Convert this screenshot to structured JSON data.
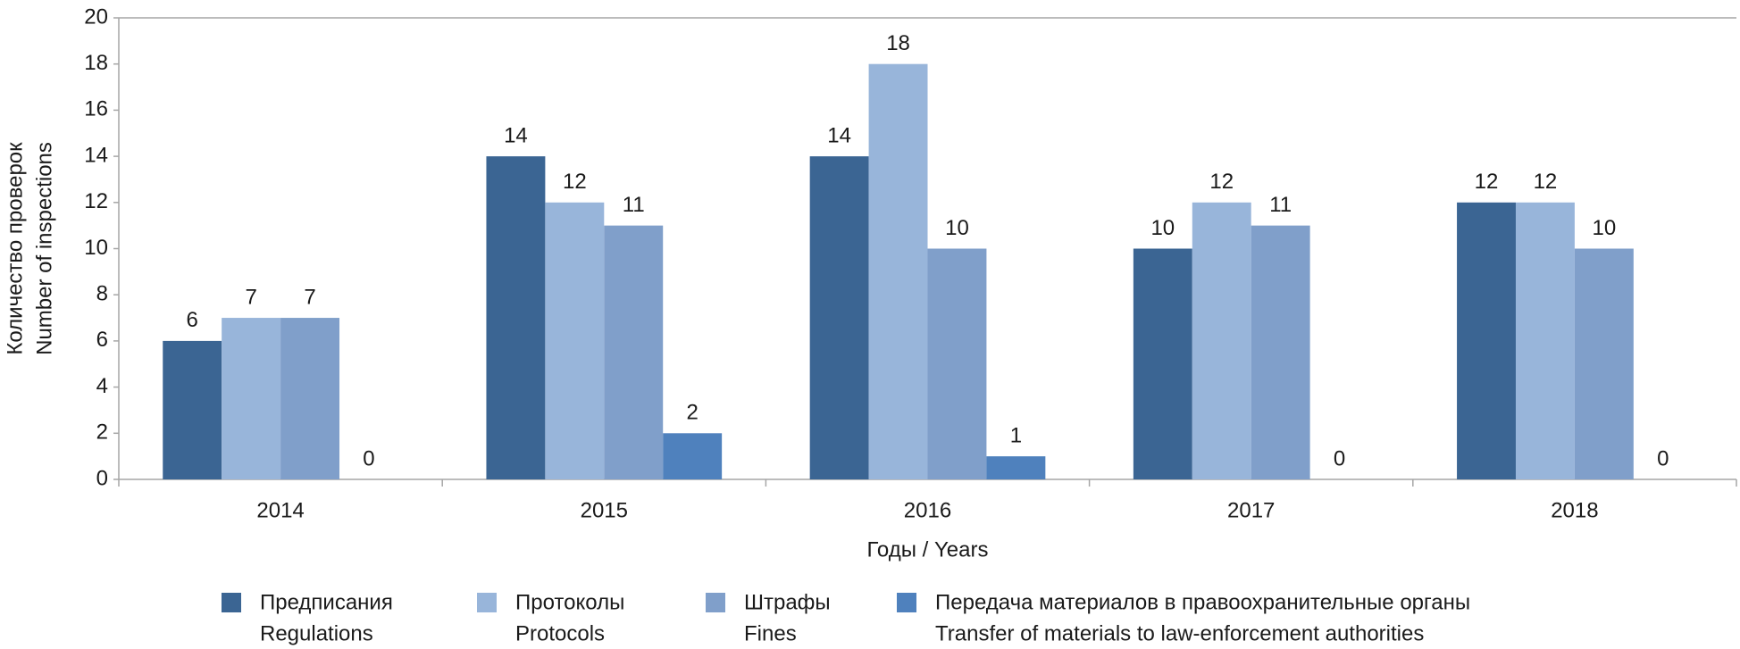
{
  "chart_data": {
    "type": "bar",
    "ylabel": [
      "Количество проверок",
      "Number of inspections"
    ],
    "xlabel": "Годы / Years",
    "categories": [
      "2014",
      "2015",
      "2016",
      "2017",
      "2018"
    ],
    "series": [
      {
        "name": [
          "Предписания",
          "Regulations"
        ],
        "color": "#3b6593",
        "values": [
          6,
          14,
          14,
          10,
          12
        ]
      },
      {
        "name": [
          "Протоколы",
          "Protocols"
        ],
        "color": "#98b5da",
        "values": [
          7,
          12,
          18,
          12,
          12
        ]
      },
      {
        "name": [
          "Штрафы",
          "Fines"
        ],
        "color": "#809fca",
        "values": [
          7,
          11,
          10,
          11,
          10
        ]
      },
      {
        "name": [
          "Передача материалов в правоохранительные органы",
          "Transfer of materials to law-enforcement authorities"
        ],
        "color": "#4f81bd",
        "values": [
          0,
          2,
          1,
          0,
          0
        ]
      }
    ],
    "ylim": [
      0,
      20
    ],
    "yticks": [
      0,
      2,
      4,
      6,
      8,
      10,
      12,
      14,
      16,
      18,
      20
    ],
    "grid": false
  }
}
